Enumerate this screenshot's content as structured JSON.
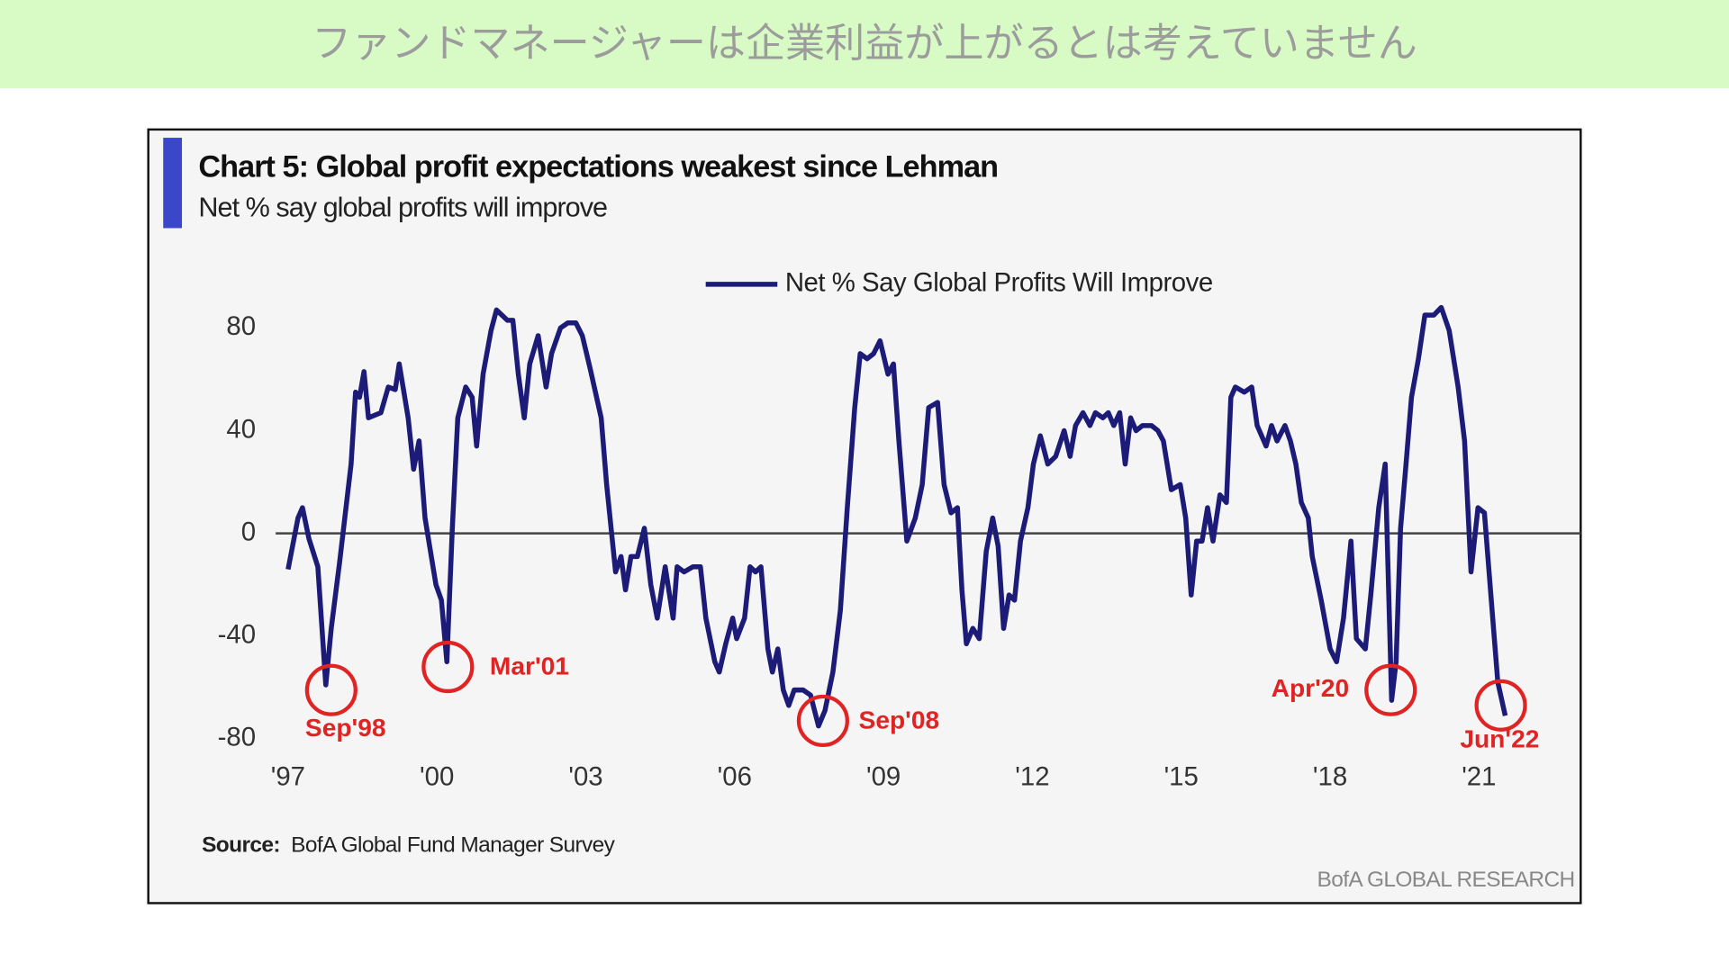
{
  "banner": {
    "title": "ファンドマネージャーは企業利益が上がるとは考えていません"
  },
  "chart_data": {
    "type": "line",
    "title": "Chart 5: Global profit expectations weakest since Lehman",
    "subtitle": "Net % say global profits will improve",
    "source_label": "Source:",
    "source": "BofA Global Fund Manager Survey",
    "footer": "BofA GLOBAL RESEARCH",
    "legend": "top",
    "grid": false,
    "zero_line": true,
    "xlim": [
      1996.75,
      2023.05
    ],
    "xticks": [
      {
        "value": 1997,
        "label": "'97"
      },
      {
        "value": 2000,
        "label": "'00"
      },
      {
        "value": 2003,
        "label": "'03"
      },
      {
        "value": 2006,
        "label": "'06"
      },
      {
        "value": 2009,
        "label": "'09"
      },
      {
        "value": 2012,
        "label": "'12"
      },
      {
        "value": 2015,
        "label": "'15"
      },
      {
        "value": 2018,
        "label": "'18"
      },
      {
        "value": 2021,
        "label": "'21"
      }
    ],
    "ylim": [
      -85,
      90
    ],
    "yticks": [
      -80,
      -40,
      0,
      40,
      80
    ],
    "x": [
      1997.0,
      1997.2,
      1997.29,
      1997.42,
      1997.6,
      1997.76,
      1997.87,
      1998.04,
      1998.27,
      1998.36,
      1998.44,
      1998.53,
      1998.62,
      1998.87,
      1999.02,
      1999.16,
      1999.24,
      1999.42,
      1999.53,
      1999.64,
      1999.76,
      1999.98,
      2000.09,
      2000.2,
      2000.31,
      2000.42,
      2000.58,
      2000.71,
      2000.8,
      2000.93,
      2001.09,
      2001.2,
      2001.42,
      2001.53,
      2001.64,
      2001.76,
      2001.87,
      2002.04,
      2002.2,
      2002.31,
      2002.49,
      2002.64,
      2002.8,
      2002.93,
      2003.09,
      2003.31,
      2003.42,
      2003.6,
      2003.71,
      2003.8,
      2003.91,
      2004.04,
      2004.18,
      2004.31,
      2004.44,
      2004.6,
      2004.76,
      2004.84,
      2004.98,
      2005.16,
      2005.31,
      2005.42,
      2005.6,
      2005.69,
      2005.82,
      2005.96,
      2006.04,
      2006.2,
      2006.31,
      2006.42,
      2006.53,
      2006.67,
      2006.76,
      2006.87,
      2006.98,
      2007.09,
      2007.2,
      2007.38,
      2007.53,
      2007.69,
      2007.82,
      2007.98,
      2008.13,
      2008.27,
      2008.42,
      2008.53,
      2008.67,
      2008.8,
      2008.93,
      2009.09,
      2009.2,
      2009.31,
      2009.47,
      2009.64,
      2009.78,
      2009.91,
      2010.09,
      2010.22,
      2010.36,
      2010.49,
      2010.58,
      2010.67,
      2010.8,
      2010.93,
      2011.07,
      2011.2,
      2011.31,
      2011.42,
      2011.53,
      2011.64,
      2011.76,
      2011.91,
      2012.02,
      2012.16,
      2012.31,
      2012.47,
      2012.64,
      2012.76,
      2012.87,
      2013.02,
      2013.16,
      2013.27,
      2013.42,
      2013.53,
      2013.64,
      2013.76,
      2013.87,
      2013.98,
      2014.09,
      2014.22,
      2014.4,
      2014.53,
      2014.64,
      2014.8,
      2014.98,
      2015.09,
      2015.2,
      2015.31,
      2015.42,
      2015.53,
      2015.64,
      2015.78,
      2015.91,
      2016.0,
      2016.09,
      2016.27,
      2016.42,
      2016.53,
      2016.71,
      2016.82,
      2016.93,
      2017.09,
      2017.2,
      2017.31,
      2017.42,
      2017.56,
      2017.64,
      2017.82,
      2018.0,
      2018.13,
      2018.27,
      2018.42,
      2018.53,
      2018.71,
      2018.82,
      2018.98,
      2019.11,
      2019.24,
      2019.33,
      2019.42,
      2019.53,
      2019.64,
      2019.78,
      2019.91,
      2020.09,
      2020.24,
      2020.4,
      2020.58,
      2020.71,
      2020.84,
      2020.98,
      2021.11,
      2021.24,
      2021.38,
      2021.53
    ],
    "series": [
      {
        "name": "Net % Say Global Profits Will Improve",
        "color": "#1c1c78",
        "values": [
          -14,
          6,
          10,
          -2,
          -13,
          -59,
          -37,
          -11,
          27,
          55,
          53,
          63,
          45,
          47,
          57,
          56,
          66,
          45,
          25,
          36,
          6,
          -20,
          -26,
          -50,
          2,
          45,
          57,
          53,
          34,
          62,
          79,
          87,
          83,
          83,
          62,
          45,
          66,
          77,
          57,
          70,
          80,
          82,
          82,
          77,
          64,
          45,
          19,
          -15,
          -9,
          -22,
          -9,
          -9,
          2,
          -20,
          -33,
          -13,
          -33,
          -13,
          -15,
          -13,
          -13,
          -33,
          -50,
          -54,
          -43,
          -33,
          -41,
          -33,
          -13,
          -15,
          -13,
          -45,
          -54,
          -45,
          -61,
          -67,
          -61,
          -61,
          -63,
          -75,
          -69,
          -54,
          -30,
          10,
          49,
          70,
          68,
          70,
          75,
          62,
          66,
          36,
          -3,
          6,
          19,
          49,
          51,
          19,
          8,
          10,
          -22,
          -43,
          -37,
          -41,
          -7,
          6,
          -5,
          -37,
          -24,
          -26,
          -3,
          10,
          27,
          38,
          27,
          30,
          40,
          30,
          42,
          47,
          42,
          47,
          45,
          47,
          42,
          47,
          27,
          45,
          40,
          42,
          42,
          40,
          36,
          17,
          19,
          6,
          -24,
          -3,
          -3,
          10,
          -3,
          15,
          12,
          53,
          57,
          55,
          57,
          42,
          34,
          42,
          36,
          42,
          36,
          27,
          12,
          6,
          -9,
          -26,
          -45,
          -50,
          -33,
          -3,
          -41,
          -45,
          -24,
          10,
          27,
          -65,
          -50,
          2,
          27,
          53,
          68,
          85,
          85,
          88,
          79,
          57,
          36,
          -15,
          10,
          8,
          -24,
          -58,
          -71
        ]
      }
    ],
    "annotations": [
      {
        "text": "Sep'98",
        "x": 1997.87,
        "y": -61,
        "color": "#e02424"
      },
      {
        "text": "Mar'01",
        "x": 2000.22,
        "y": -52,
        "color": "#e02424"
      },
      {
        "text": "Sep'08",
        "x": 2007.78,
        "y": -73,
        "color": "#e02424"
      },
      {
        "text": "Apr'20",
        "x": 2019.22,
        "y": -61,
        "color": "#e02424"
      },
      {
        "text": "Jun'22",
        "x": 2021.44,
        "y": -67,
        "color": "#e02424"
      }
    ]
  }
}
